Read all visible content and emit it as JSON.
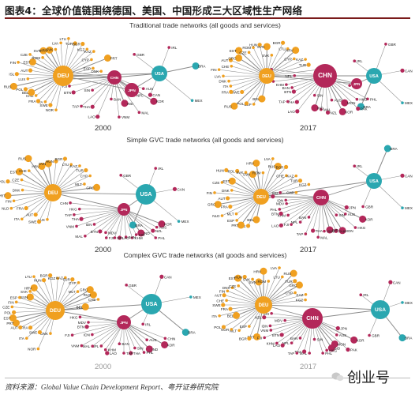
{
  "header": {
    "title": "图表4：全球价值链围绕德国、美国、中国形成三大区域性生产网络"
  },
  "sections": [
    {
      "title": "Traditional trade networks (all goods and services)"
    },
    {
      "title": "Simple GVC trade networks (all goods and services)"
    },
    {
      "title": "Complex GVC trade networks (all goods and services)"
    }
  ],
  "years": {
    "left": "2000",
    "right": "2017"
  },
  "footer": {
    "source": "资料来源：Global Value Chain Development Report、粤开证券研究院",
    "watermark": "创业号"
  },
  "colors": {
    "deu": "#f0a020",
    "usa": "#2aa7b0",
    "chn": "#b3285a",
    "jpn": "#b3285a",
    "other_orange": "#f0a020",
    "other_teal": "#2aa7b0",
    "other_magenta": "#b3285a",
    "edge": "#8a8a8a",
    "title_rule": "#7a1b1b"
  },
  "networks": [
    {
      "id": "traditional-2000",
      "hubs": [
        {
          "label": "DEU",
          "color": "orange"
        },
        {
          "label": "USA",
          "color": "teal"
        },
        {
          "label": "CHN",
          "color": "magenta"
        },
        {
          "label": "JPN",
          "color": "magenta"
        }
      ],
      "labels": [
        "NOR",
        "SWE",
        "ITA",
        "FRA",
        "GBR",
        "CHE",
        "BEL",
        "POL",
        "RUS",
        "LUX",
        "ISL",
        "AUT",
        "FIN",
        "EST",
        "CZE",
        "ROM",
        "SVN",
        "HRV",
        "SVK",
        "LVA",
        "LTU",
        "TUR",
        "BGR",
        "KGZ",
        "KAZ",
        "IRL",
        "BRA",
        "MEX",
        "CAN",
        "AUS",
        "KOR",
        "NPL",
        "CYP",
        "PRT",
        "MAL",
        "IND",
        "VNM",
        "BAN",
        "LAO",
        "THA",
        "TAP",
        "SIN",
        "BTN",
        "FJI",
        "MON",
        "ESP",
        "PHL",
        "DNK"
      ]
    },
    {
      "id": "traditional-2017",
      "hubs": [
        {
          "label": "DEU",
          "color": "orange"
        },
        {
          "label": "USA",
          "color": "teal"
        },
        {
          "label": "CHN",
          "color": "magenta"
        },
        {
          "label": "JPN",
          "color": "magenta"
        }
      ],
      "labels": [
        "BEL",
        "ESP",
        "POL",
        "RUS",
        "SWE",
        "FRA",
        "ITA",
        "DNK",
        "LVA",
        "FIN",
        "CHE",
        "AUT",
        "GRC",
        "EST",
        "CZE",
        "ROM",
        "HUN",
        "SVN",
        "SVK",
        "BGR",
        "LTU",
        "HRV",
        "CYP",
        "MDV",
        "PHL",
        "HKG",
        "PAK",
        "MON",
        "IRL",
        "KAZ",
        "GBR",
        "CAN",
        "MEX",
        "BRA",
        "TUR",
        "KOR",
        "AUS",
        "NZL",
        "MAL",
        "IND",
        "SIN",
        "LAO",
        "THA",
        "TAP",
        "BTN",
        "BAN",
        "KHM",
        "VNM",
        "NPL",
        "FJI",
        "KGZ"
      ]
    },
    {
      "id": "simple-2000",
      "hubs": [
        {
          "label": "DEU",
          "color": "orange"
        },
        {
          "label": "USA",
          "color": "teal"
        },
        {
          "label": "JPN",
          "color": "magenta"
        }
      ],
      "labels": [
        "LUX",
        "SWE",
        "AUT",
        "ITA",
        "FRA",
        "NLD",
        "FIN",
        "PRT",
        "DNK",
        "POL",
        "CZE",
        "EST",
        "CHE",
        "RUS",
        "HRV",
        "SVN",
        "HUN",
        "BGR",
        "LTU",
        "KAZ",
        "TUR",
        "GBR",
        "CYP",
        "IRL",
        "MLT",
        "GRC",
        "CAN",
        "MEX",
        "BRA",
        "KOR",
        "AUS",
        "NZL",
        "PHL",
        "IND",
        "SIN",
        "KHM",
        "BAN",
        "LAO",
        "NPL",
        "FJI",
        "MDV",
        "BTN",
        "MAL",
        "IDN",
        "VNM",
        "THA",
        "TAP",
        "HKG",
        "CHN"
      ]
    },
    {
      "id": "simple-2017",
      "hubs": [
        {
          "label": "DEU",
          "color": "orange"
        },
        {
          "label": "USA",
          "color": "teal"
        },
        {
          "label": "CHN",
          "color": "magenta"
        }
      ],
      "labels": [
        "BEL",
        "SWE",
        "PRT",
        "ESP",
        "MLT",
        "IRL",
        "BRA",
        "NLD",
        "FRA",
        "GRC",
        "AUT",
        "FIN",
        "DNK",
        "CZE",
        "EST",
        "HUN",
        "POL",
        "SVK",
        "SVN",
        "HRV",
        "ROM",
        "LVA",
        "RUS",
        "BGR",
        "CHE",
        "CAN",
        "MEX",
        "GBR",
        "JPN",
        "KOR",
        "AUS",
        "HKG",
        "SIN",
        "MON",
        "PAK",
        "IND",
        "VNM",
        "KAZ",
        "TUR",
        "KGZ",
        "CYP",
        "MAL",
        "THA",
        "TAP",
        "BAN",
        "NPL",
        "FJI",
        "LAO",
        "KHM",
        "BTN",
        "PHL",
        "MDV",
        "IDN",
        "NZL",
        "SRI"
      ]
    },
    {
      "id": "complex-2000",
      "hubs": [
        {
          "label": "DEU",
          "color": "orange"
        },
        {
          "label": "USA",
          "color": "teal"
        },
        {
          "label": "JPN",
          "color": "magenta"
        }
      ],
      "labels": [
        "DNK",
        "NOR",
        "SWE",
        "ITA",
        "FRA",
        "GBR",
        "AUT",
        "PRT",
        "EST",
        "POL",
        "CZE",
        "FIN",
        "ESP",
        "SVN",
        "SVK",
        "HRV",
        "LTU",
        "HUN",
        "BGR",
        "KGZ",
        "KAZ",
        "TUR",
        "CYP",
        "MLT",
        "GRC",
        "CAN",
        "MEX",
        "BRA",
        "CHN",
        "KOR",
        "AUS",
        "IND",
        "PHL",
        "SIN",
        "THA",
        "TAP",
        "BAN",
        "LAO",
        "KHM",
        "NPL",
        "MAL",
        "VNM",
        "IDN",
        "FJI",
        "BTN",
        "MDV",
        "HKG",
        "IRL",
        "RUS",
        "CHE",
        "BEL"
      ]
    },
    {
      "id": "complex-2017",
      "hubs": [
        {
          "label": "DEU",
          "color": "orange"
        },
        {
          "label": "USA",
          "color": "teal"
        },
        {
          "label": "CHN",
          "color": "magenta"
        }
      ],
      "labels": [
        "PRT",
        "BGR",
        "ESP",
        "MLT",
        "NOR",
        "POL",
        "BEL",
        "ITA",
        "FRA",
        "SWE",
        "CHE",
        "AUT",
        "FIN",
        "DNK",
        "CZE",
        "EST",
        "HUN",
        "SVK",
        "SVN",
        "HRV",
        "ROM",
        "LVA",
        "LTU",
        "RUS",
        "TUR",
        "GRC",
        "CYP",
        "IRL",
        "CAN",
        "MEX",
        "BRA",
        "GBR",
        "JPN",
        "KOR",
        "AUS",
        "PAK",
        "MON",
        "KAZ",
        "KGZ",
        "IND",
        "HKG",
        "PHL",
        "SIN",
        "MAL",
        "THA",
        "TAP",
        "BAN",
        "NPL",
        "LAO",
        "KHM",
        "BTN",
        "FJI",
        "VNM",
        "IDN",
        "MDV",
        "NZL",
        "SRI"
      ]
    }
  ]
}
